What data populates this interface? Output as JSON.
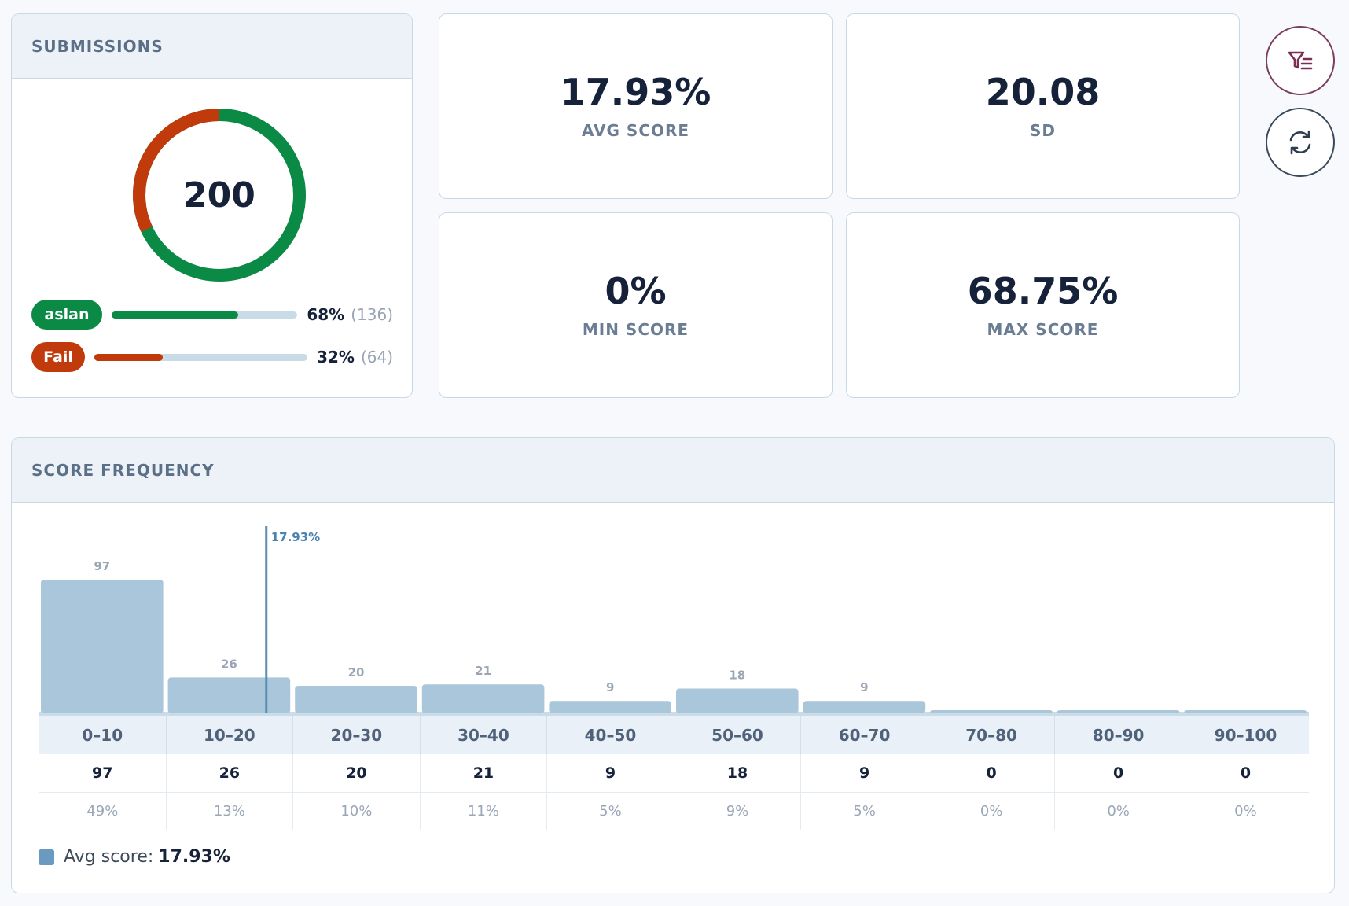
{
  "submissions": {
    "title": "SUBMISSIONS",
    "total": "200",
    "pass": {
      "label": "aslan",
      "percent": "68%",
      "count": "(136)",
      "fraction": 0.68,
      "color": "#0b8a45"
    },
    "fail": {
      "label": "Fail",
      "percent": "32%",
      "count": "(64)",
      "fraction": 0.32,
      "color": "#c13a0c"
    }
  },
  "stats": {
    "avg": {
      "value": "17.93%",
      "label": "AVG SCORE"
    },
    "sd": {
      "value": "20.08",
      "label": "SD"
    },
    "min": {
      "value": "0%",
      "label": "MIN SCORE"
    },
    "max": {
      "value": "68.75%",
      "label": "MAX SCORE"
    }
  },
  "actions": {
    "filter_icon": "filter-icon",
    "refresh_icon": "refresh-icon"
  },
  "frequency": {
    "title": "SCORE FREQUENCY",
    "avg_legend_label": "Avg score:",
    "avg_legend_value": "17.93%",
    "shares": [
      "49%",
      "13%",
      "10%",
      "11%",
      "5%",
      "9%",
      "5%",
      "0%",
      "0%",
      "0%"
    ]
  },
  "chart_data": {
    "type": "bar",
    "categories": [
      "0–10",
      "10–20",
      "20–30",
      "30–40",
      "40–50",
      "50–60",
      "60–70",
      "70–80",
      "80–90",
      "90–100"
    ],
    "values": [
      97,
      26,
      20,
      21,
      9,
      18,
      9,
      0,
      0,
      0
    ],
    "avg_marker": {
      "value": 17.93,
      "label": "17.93%"
    },
    "ylim": [
      0,
      97
    ],
    "bar_color": "#a9c6da",
    "marker_color": "#5b8fb4"
  }
}
